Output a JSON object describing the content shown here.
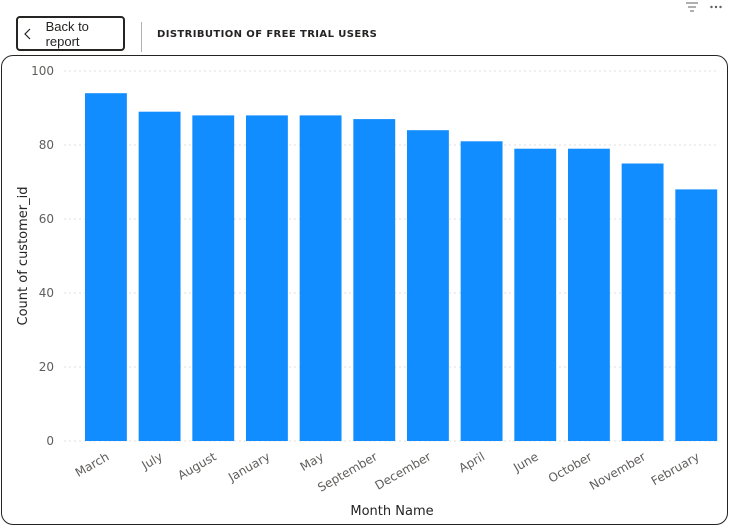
{
  "header": {
    "back_label": "Back to report",
    "visual_title": "DISTRIBUTION OF FREE TRIAL USERS"
  },
  "icons": {
    "back": "chevron-left-icon",
    "filter": "filter-icon",
    "more": "more-options-icon"
  },
  "colors": {
    "bar": "#118DFF",
    "gridline": "#e1dfdd",
    "border": "#252423"
  },
  "chart_data": {
    "type": "bar",
    "categories": [
      "March",
      "July",
      "August",
      "January",
      "May",
      "September",
      "December",
      "April",
      "June",
      "October",
      "November",
      "February"
    ],
    "values": [
      94,
      89,
      88,
      88,
      88,
      87,
      84,
      81,
      79,
      79,
      75,
      68
    ],
    "xlabel": "Month Name",
    "ylabel": "Count of customer_id",
    "ylim": [
      0,
      100
    ],
    "yticks": [
      0,
      20,
      40,
      60,
      80,
      100
    ],
    "grid": true
  }
}
